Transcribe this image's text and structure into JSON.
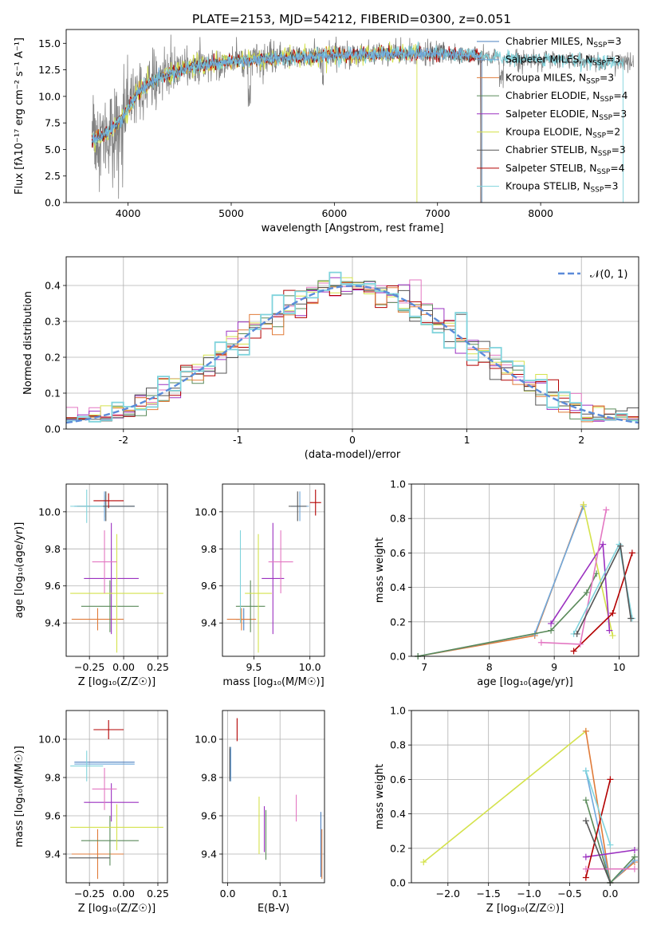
{
  "title": "PLATE=2153, MJD=54212, FIBERID=0300, z=0.051",
  "colors": {
    "chabrier_miles": "#4a7fbf",
    "salpeter_miles": "#6fa8dc",
    "kroupa_miles": "#e07b39",
    "chabrier_elodie": "#5a8a5a",
    "salpeter_elodie": "#9b30c0",
    "kroupa_elodie": "#d4e24c",
    "chabrier_stelib": "#555555",
    "salpeter_stelib": "#b30000",
    "kroupa_stelib": "#7fd3dc",
    "pink": "#e377c2",
    "data_gray": "#808080",
    "normal_curve": "#5b8bd9"
  },
  "chart_data": [
    {
      "type": "line",
      "id": "spectrum",
      "xlabel": "wavelength [Angstrom, rest frame]",
      "ylabel": "Flux [f",
      "ylabel_full": "Flux [fλ10⁻¹⁷ erg cm⁻² s⁻¹ A⁻¹]",
      "xlim": [
        3400,
        8950
      ],
      "ylim": [
        0,
        16.3
      ],
      "xticks": [
        4000,
        5000,
        6000,
        7000,
        8000
      ],
      "yticks": [
        0.0,
        2.5,
        5.0,
        7.5,
        10.0,
        12.5,
        15.0
      ],
      "grid": false,
      "legend_placement": "right",
      "legend": [
        {
          "label": "Chabrier MILES, N",
          "sub": "SSP",
          "suffix": "=3",
          "color_key": "chabrier_miles"
        },
        {
          "label": "Salpeter MILES, N",
          "sub": "SSP",
          "suffix": "=3",
          "color_key": "salpeter_miles"
        },
        {
          "label": "Kroupa MILES, N",
          "sub": "SSP",
          "suffix": "=3",
          "color_key": "kroupa_miles"
        },
        {
          "label": "Chabrier ELODIE, N",
          "sub": "SSP",
          "suffix": "=4",
          "color_key": "chabrier_elodie"
        },
        {
          "label": "Salpeter ELODIE, N",
          "sub": "SSP",
          "suffix": "=3",
          "color_key": "salpeter_elodie"
        },
        {
          "label": "Kroupa ELODIE, N",
          "sub": "SSP",
          "suffix": "=2",
          "color_key": "kroupa_elodie"
        },
        {
          "label": "Chabrier STELIB, N",
          "sub": "SSP",
          "suffix": "=3",
          "color_key": "chabrier_stelib"
        },
        {
          "label": "Salpeter STELIB, N",
          "sub": "SSP",
          "suffix": "=4",
          "color_key": "salpeter_stelib"
        },
        {
          "label": "Kroupa STELIB, N",
          "sub": "SSP",
          "suffix": "=3",
          "color_key": "kroupa_stelib"
        }
      ],
      "continuum_points": [
        [
          3650,
          5.8
        ],
        [
          3800,
          6.5
        ],
        [
          3950,
          8.0
        ],
        [
          4100,
          10.5
        ],
        [
          4300,
          11.8
        ],
        [
          4600,
          12.8
        ],
        [
          5000,
          13.3
        ],
        [
          5500,
          13.6
        ],
        [
          6000,
          13.9
        ],
        [
          6500,
          14.0
        ],
        [
          7000,
          14.0
        ],
        [
          7400,
          13.8
        ],
        [
          7800,
          13.5
        ],
        [
          8300,
          13.4
        ],
        [
          8800,
          13.2
        ]
      ],
      "model_extent": {
        "kroupa_elodie_end": 6800,
        "stelib_end": 7420,
        "miles_end": 7430
      }
    },
    {
      "type": "line",
      "id": "residuals",
      "xlabel": "(data-model)/error",
      "ylabel": "Normed distribution",
      "xlim": [
        -2.5,
        2.5
      ],
      "ylim": [
        0,
        0.48
      ],
      "xticks": [
        -2,
        -1,
        0,
        1,
        2
      ],
      "yticks": [
        0.0,
        0.1,
        0.2,
        0.3,
        0.4
      ],
      "grid": true,
      "legend_placement": "top-right",
      "legend": [
        {
          "label": "𝒩(0, 1)",
          "color_key": "normal_curve"
        }
      ],
      "bin_width": 0.1,
      "bin_start": -2.5
    },
    {
      "type": "scatter",
      "id": "age_vs_Z",
      "xlabel": "Z [log₁₀(Z/Z☉)]",
      "ylabel": "age  [log₁₀(age/yr)]",
      "xlim": [
        -0.42,
        0.32
      ],
      "ylim": [
        9.22,
        10.15
      ],
      "xticks": [
        -0.25,
        0.0,
        0.25
      ],
      "xticklabels": [
        "−0.25",
        "0.00",
        "0.25"
      ],
      "yticks": [
        9.4,
        9.6,
        9.8,
        10.0
      ],
      "grid": true,
      "points": [
        {
          "x": -0.14,
          "y": 10.03,
          "ex": 0.22,
          "ey": 0.06,
          "color_key": "chabrier_miles"
        },
        {
          "x": -0.14,
          "y": 10.03,
          "ex": 0.22,
          "ey": 0.08,
          "color_key": "salpeter_miles"
        },
        {
          "x": -0.19,
          "y": 9.42,
          "ex": 0.19,
          "ey": 0.06,
          "color_key": "kroupa_miles"
        },
        {
          "x": -0.1,
          "y": 9.49,
          "ex": 0.21,
          "ey": 0.14,
          "color_key": "chabrier_elodie"
        },
        {
          "x": -0.09,
          "y": 9.64,
          "ex": 0.2,
          "ey": 0.3,
          "color_key": "salpeter_elodie"
        },
        {
          "x": -0.05,
          "y": 9.56,
          "ex": 0.34,
          "ey": 0.32,
          "color_key": "kroupa_elodie"
        },
        {
          "x": -0.13,
          "y": 10.03,
          "ex": 0.21,
          "ey": 0.08,
          "color_key": "chabrier_stelib"
        },
        {
          "x": -0.11,
          "y": 10.06,
          "ex": 0.11,
          "ey": 0.04,
          "color_key": "salpeter_stelib"
        },
        {
          "x": -0.14,
          "y": 9.73,
          "ex": 0.09,
          "ey": 0.17,
          "color_key": "pink"
        },
        {
          "x": -0.27,
          "y": 10.03,
          "ex": 0.12,
          "ey": 0.09,
          "color_key": "kroupa_stelib"
        }
      ]
    },
    {
      "type": "scatter",
      "id": "age_vs_mass",
      "xlabel": "mass [log₁₀(M/M☉)]",
      "ylabel": "",
      "xlim": [
        9.22,
        10.13
      ],
      "ylim": [
        9.22,
        10.15
      ],
      "xticks": [
        9.5,
        10.0
      ],
      "xticklabels": [
        "9.5",
        "10.0"
      ],
      "yticks": [
        9.4,
        9.6,
        9.8,
        10.0
      ],
      "grid": true,
      "points": [
        {
          "x": 9.41,
          "y": 9.42,
          "ex": 0.07,
          "ey": 0.06,
          "color_key": "chabrier_miles"
        },
        {
          "x": 9.91,
          "y": 10.03,
          "ex": 0.08,
          "ey": 0.08,
          "color_key": "salpeter_miles"
        },
        {
          "x": 9.39,
          "y": 9.42,
          "ex": 0.13,
          "ey": 0.06,
          "color_key": "kroupa_miles"
        },
        {
          "x": 9.47,
          "y": 9.49,
          "ex": 0.13,
          "ey": 0.14,
          "color_key": "chabrier_elodie"
        },
        {
          "x": 9.67,
          "y": 9.64,
          "ex": 0.1,
          "ey": 0.3,
          "color_key": "salpeter_elodie"
        },
        {
          "x": 9.54,
          "y": 9.56,
          "ex": 0.12,
          "ey": 0.32,
          "color_key": "kroupa_elodie"
        },
        {
          "x": 9.89,
          "y": 10.03,
          "ex": 0.08,
          "ey": 0.08,
          "color_key": "chabrier_stelib"
        },
        {
          "x": 10.05,
          "y": 10.05,
          "ex": 0.05,
          "ey": 0.07,
          "color_key": "salpeter_stelib"
        },
        {
          "x": 9.74,
          "y": 9.73,
          "ex": 0.11,
          "ey": 0.17,
          "color_key": "pink"
        },
        {
          "x": 9.38,
          "y": 9.65,
          "ex": 0.0,
          "ey": 0.25,
          "color_key": "kroupa_stelib"
        }
      ]
    },
    {
      "type": "line",
      "id": "massweight_vs_age",
      "xlabel": "age  [log₁₀(age/yr)]",
      "ylabel": "mass weight",
      "xlim": [
        6.8,
        10.3
      ],
      "ylim": [
        0,
        1.0
      ],
      "xticks": [
        7,
        8,
        9,
        10
      ],
      "xticklabels": [
        "7",
        "8",
        "9",
        "10"
      ],
      "yticks": [
        0.0,
        0.2,
        0.4,
        0.6,
        0.8,
        1.0
      ],
      "yticklabels": [
        "0.0",
        "0.2",
        "0.4",
        "0.6",
        "0.8",
        "1.0"
      ],
      "grid": true,
      "series": [
        {
          "color_key": "kroupa_miles",
          "points": [
            [
              6.9,
              0.0
            ],
            [
              8.7,
              0.12
            ],
            [
              9.45,
              0.88
            ]
          ]
        },
        {
          "color_key": "salpeter_miles",
          "points": [
            [
              6.9,
              0.0
            ],
            [
              8.7,
              0.13
            ],
            [
              9.45,
              0.87
            ]
          ]
        },
        {
          "color_key": "chabrier_elodie",
          "points": [
            [
              6.9,
              0.0
            ],
            [
              8.95,
              0.15
            ],
            [
              9.5,
              0.37
            ],
            [
              9.65,
              0.48
            ]
          ]
        },
        {
          "color_key": "kroupa_elodie",
          "points": [
            [
              9.45,
              0.88
            ],
            [
              9.9,
              0.12
            ]
          ]
        },
        {
          "color_key": "salpeter_elodie",
          "points": [
            [
              8.95,
              0.19
            ],
            [
              9.75,
              0.65
            ],
            [
              9.85,
              0.15
            ]
          ]
        },
        {
          "color_key": "salpeter_stelib",
          "points": [
            [
              9.3,
              0.03
            ],
            [
              9.9,
              0.25
            ],
            [
              10.2,
              0.6
            ]
          ]
        },
        {
          "color_key": "pink",
          "points": [
            [
              8.8,
              0.08
            ],
            [
              9.4,
              0.07
            ],
            [
              9.8,
              0.85
            ]
          ]
        },
        {
          "color_key": "kroupa_stelib",
          "points": [
            [
              9.3,
              0.13
            ],
            [
              10.0,
              0.65
            ],
            [
              10.2,
              0.22
            ]
          ]
        },
        {
          "color_key": "chabrier_stelib",
          "points": [
            [
              9.35,
              0.13
            ],
            [
              10.02,
              0.64
            ],
            [
              10.18,
              0.22
            ]
          ]
        }
      ]
    },
    {
      "type": "scatter",
      "id": "mass_vs_Z",
      "xlabel": "Z [log₁₀(Z/Z☉)]",
      "ylabel": "mass [log₁₀(M/M☉)]",
      "xlim": [
        -0.42,
        0.32
      ],
      "ylim": [
        9.25,
        10.15
      ],
      "xticks": [
        -0.25,
        0.0,
        0.25
      ],
      "xticklabels": [
        "−0.25",
        "0.00",
        "0.25"
      ],
      "yticks": [
        9.4,
        9.6,
        9.8,
        10.0
      ],
      "grid": true,
      "points": [
        {
          "x": -0.14,
          "y": 9.88,
          "ex": 0.22,
          "ey": 0.0,
          "color_key": "chabrier_miles"
        },
        {
          "x": -0.14,
          "y": 9.87,
          "ex": 0.22,
          "ey": 0.0,
          "color_key": "salpeter_miles"
        },
        {
          "x": -0.19,
          "y": 9.4,
          "ex": 0.19,
          "ey": 0.13,
          "color_key": "kroupa_miles"
        },
        {
          "x": -0.1,
          "y": 9.47,
          "ex": 0.21,
          "ey": 0.13,
          "color_key": "chabrier_elodie"
        },
        {
          "x": -0.09,
          "y": 9.67,
          "ex": 0.2,
          "ey": 0.1,
          "color_key": "salpeter_elodie"
        },
        {
          "x": -0.05,
          "y": 9.54,
          "ex": 0.34,
          "ey": 0.12,
          "color_key": "kroupa_elodie"
        },
        {
          "x": -0.25,
          "y": 9.38,
          "ex": 0.15,
          "ey": 0.0,
          "color_key": "chabrier_stelib"
        },
        {
          "x": -0.11,
          "y": 10.05,
          "ex": 0.11,
          "ey": 0.05,
          "color_key": "salpeter_stelib"
        },
        {
          "x": -0.14,
          "y": 9.74,
          "ex": 0.09,
          "ey": 0.11,
          "color_key": "pink"
        },
        {
          "x": -0.27,
          "y": 9.86,
          "ex": 0.12,
          "ey": 0.08,
          "color_key": "kroupa_stelib"
        }
      ]
    },
    {
      "type": "scatter",
      "id": "mass_vs_EBV",
      "xlabel": "E(B-V)",
      "ylabel": "",
      "xlim": [
        -0.01,
        0.185
      ],
      "ylim": [
        9.25,
        10.15
      ],
      "xticks": [
        0.0,
        0.1
      ],
      "xticklabels": [
        "0.0",
        "0.1"
      ],
      "yticks": [
        9.4,
        9.6,
        9.8,
        10.0
      ],
      "grid": true,
      "points": [
        {
          "x": 0.005,
          "y": 9.87,
          "ex": 0.0,
          "ey": 0.08,
          "color_key": "chabrier_miles"
        },
        {
          "x": 0.006,
          "y": 9.87,
          "ex": 0.0,
          "ey": 0.09,
          "color_key": "salpeter_miles"
        },
        {
          "x": 0.18,
          "y": 9.4,
          "ex": 0.0,
          "ey": 0.13,
          "color_key": "kroupa_miles"
        },
        {
          "x": 0.073,
          "y": 9.5,
          "ex": 0.0,
          "ey": 0.13,
          "color_key": "chabrier_elodie"
        },
        {
          "x": 0.07,
          "y": 9.53,
          "ex": 0.0,
          "ey": 0.12,
          "color_key": "salpeter_elodie"
        },
        {
          "x": 0.06,
          "y": 9.55,
          "ex": 0.0,
          "ey": 0.15,
          "color_key": "kroupa_elodie"
        },
        {
          "x": 0.004,
          "y": 9.87,
          "ex": 0.0,
          "ey": 0.09,
          "color_key": "chabrier_stelib"
        },
        {
          "x": 0.018,
          "y": 10.05,
          "ex": 0.0,
          "ey": 0.06,
          "color_key": "salpeter_stelib"
        },
        {
          "x": 0.131,
          "y": 9.64,
          "ex": 0.0,
          "ey": 0.07,
          "color_key": "pink"
        },
        {
          "x": 0.178,
          "y": 9.45,
          "ex": 0.0,
          "ey": 0.17,
          "color_key": "chabrier_miles"
        }
      ]
    },
    {
      "type": "line",
      "id": "massweight_vs_Z",
      "xlabel": "Z [log₁₀(Z/Z☉)]",
      "ylabel": "mass weight",
      "xlim": [
        -2.45,
        0.35
      ],
      "ylim": [
        0,
        1.0
      ],
      "xticks": [
        -2.0,
        -1.5,
        -1.0,
        -0.5,
        0.0
      ],
      "xticklabels": [
        "−2.0",
        "−1.5",
        "−1.0",
        "−0.5",
        "0.0"
      ],
      "yticks": [
        0.0,
        0.2,
        0.4,
        0.6,
        0.8,
        1.0
      ],
      "yticklabels": [
        "0.0",
        "0.2",
        "0.4",
        "0.6",
        "0.8",
        "1.0"
      ],
      "grid": true,
      "series": [
        {
          "color_key": "kroupa_elodie",
          "points": [
            [
              -2.3,
              0.12
            ],
            [
              -0.3,
              0.88
            ]
          ]
        },
        {
          "color_key": "kroupa_miles",
          "points": [
            [
              -0.3,
              0.88
            ],
            [
              0.0,
              0.0
            ],
            [
              0.3,
              0.12
            ]
          ]
        },
        {
          "color_key": "salpeter_miles",
          "points": [
            [
              -0.3,
              0.65
            ],
            [
              0.0,
              0.0
            ],
            [
              0.3,
              0.13
            ]
          ]
        },
        {
          "color_key": "chabrier_elodie",
          "points": [
            [
              -0.3,
              0.48
            ],
            [
              0.0,
              0.0
            ],
            [
              0.3,
              0.15
            ]
          ]
        },
        {
          "color_key": "salpeter_elodie",
          "points": [
            [
              -0.3,
              0.15
            ],
            [
              0.3,
              0.19
            ]
          ]
        },
        {
          "color_key": "salpeter_stelib",
          "points": [
            [
              -0.3,
              0.03
            ],
            [
              0.0,
              0.6
            ]
          ]
        },
        {
          "color_key": "pink",
          "points": [
            [
              -0.3,
              0.08
            ],
            [
              0.3,
              0.08
            ]
          ]
        },
        {
          "color_key": "kroupa_stelib",
          "points": [
            [
              -0.3,
              0.65
            ],
            [
              0.0,
              0.22
            ]
          ]
        },
        {
          "color_key": "chabrier_stelib",
          "points": [
            [
              -0.3,
              0.36
            ],
            [
              0.0,
              0.0
            ]
          ]
        }
      ]
    }
  ]
}
